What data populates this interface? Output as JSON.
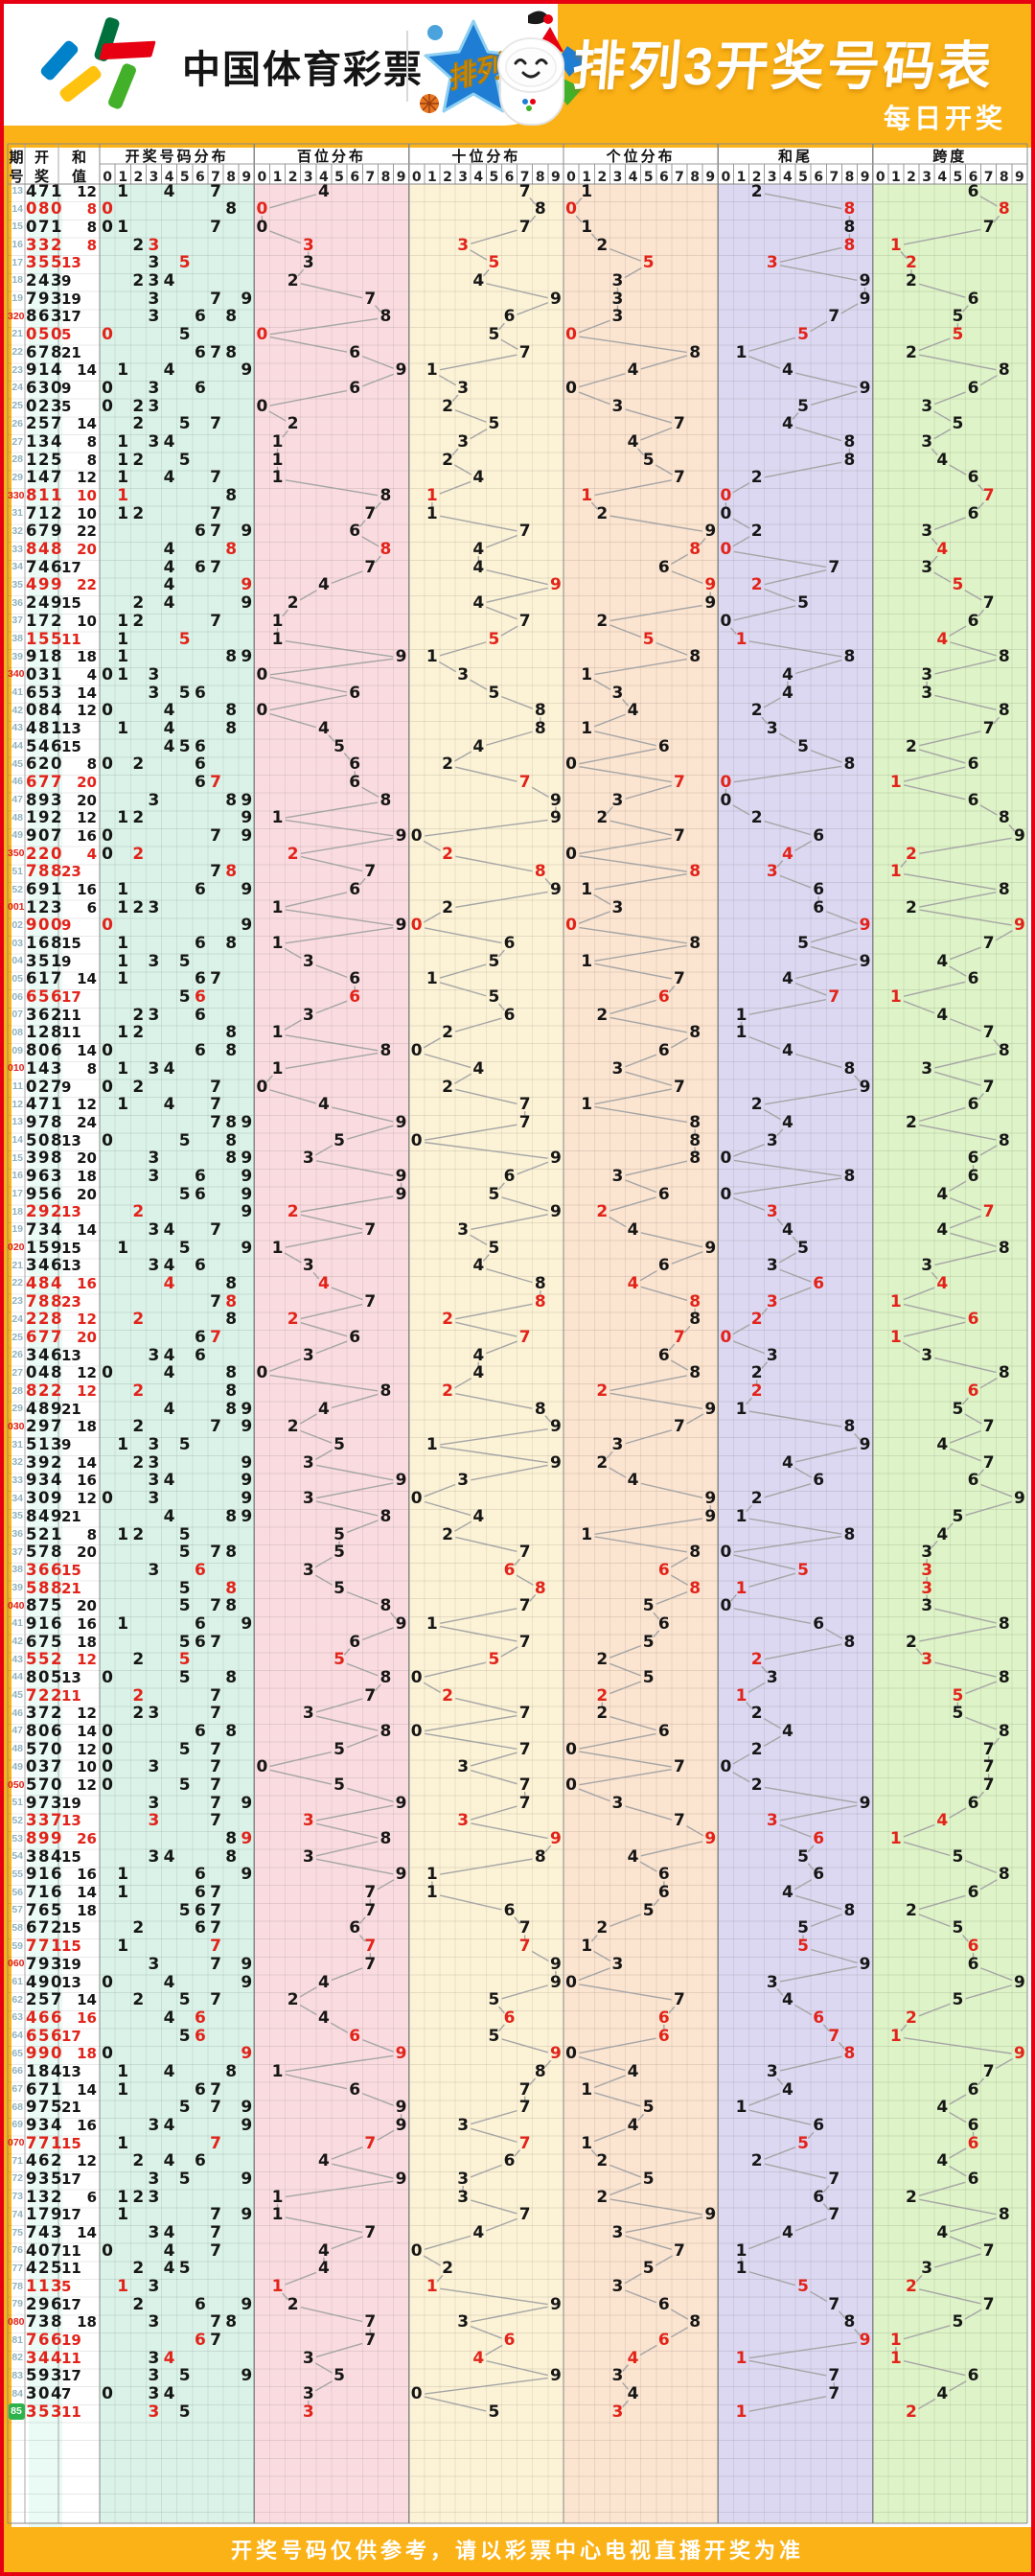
{
  "banner": {
    "brand": "中国体育彩票",
    "badge": "排列3",
    "title": "排列3开奖号码表",
    "subtitle": "每日开奖"
  },
  "table": {
    "left_headers": [
      "期号",
      "开奖",
      "和值"
    ],
    "digit_headers": [
      "0",
      "1",
      "2",
      "3",
      "4",
      "5",
      "6",
      "7",
      "8",
      "9"
    ],
    "bands": [
      {
        "title": "开奖号码分布",
        "color": "#daf2e8"
      },
      {
        "title": "百位分布",
        "color": "#fadce0"
      },
      {
        "title": "十位分布",
        "color": "#fcf2d6"
      },
      {
        "title": "个位分布",
        "color": "#fbe4d0"
      },
      {
        "title": "和尾",
        "color": "#dcd8f1"
      },
      {
        "title": "跨度",
        "color": "#def3c7"
      }
    ]
  },
  "footer": {
    "note": "开奖号码仅供参考，请以彩票中心电视直播开奖为准"
  },
  "colors": {
    "accent_orange": "#fbb216",
    "border_red": "#e60012",
    "value_black": "#161616",
    "value_red": "#e2231a",
    "issue_teal": "#90b2be",
    "latest_green": "#2db34a",
    "line_gray": "#a5a5a5",
    "result_col_bg": "#eafaf4"
  },
  "chart_data": {
    "type": "table",
    "columns": [
      "issue",
      "result",
      "sum"
    ],
    "rows": [
      [
        "13",
        "471",
        12
      ],
      [
        "14",
        "080",
        8
      ],
      [
        "15",
        "071",
        8
      ],
      [
        "16",
        "332",
        8
      ],
      [
        "17",
        "355",
        13
      ],
      [
        "18",
        "243",
        9
      ],
      [
        "19",
        "793",
        19
      ],
      [
        "320",
        "863",
        17
      ],
      [
        "21",
        "050",
        5
      ],
      [
        "22",
        "678",
        21
      ],
      [
        "23",
        "914",
        14
      ],
      [
        "24",
        "630",
        9
      ],
      [
        "25",
        "023",
        5
      ],
      [
        "26",
        "257",
        14
      ],
      [
        "27",
        "134",
        8
      ],
      [
        "28",
        "125",
        8
      ],
      [
        "29",
        "147",
        12
      ],
      [
        "330",
        "811",
        10
      ],
      [
        "31",
        "712",
        10
      ],
      [
        "32",
        "679",
        22
      ],
      [
        "33",
        "848",
        20
      ],
      [
        "34",
        "746",
        17
      ],
      [
        "35",
        "499",
        22
      ],
      [
        "36",
        "249",
        15
      ],
      [
        "37",
        "172",
        10
      ],
      [
        "38",
        "155",
        11
      ],
      [
        "39",
        "918",
        18
      ],
      [
        "340",
        "031",
        4
      ],
      [
        "41",
        "653",
        14
      ],
      [
        "42",
        "084",
        12
      ],
      [
        "43",
        "481",
        13
      ],
      [
        "44",
        "546",
        15
      ],
      [
        "45",
        "620",
        8
      ],
      [
        "46",
        "677",
        20
      ],
      [
        "47",
        "893",
        20
      ],
      [
        "48",
        "192",
        12
      ],
      [
        "49",
        "907",
        16
      ],
      [
        "350",
        "220",
        4
      ],
      [
        "51",
        "788",
        23
      ],
      [
        "52",
        "691",
        16
      ],
      [
        "001",
        "123",
        6
      ],
      [
        "02",
        "900",
        9
      ],
      [
        "03",
        "168",
        15
      ],
      [
        "04",
        "351",
        9
      ],
      [
        "05",
        "617",
        14
      ],
      [
        "06",
        "656",
        17
      ],
      [
        "07",
        "362",
        11
      ],
      [
        "08",
        "128",
        11
      ],
      [
        "09",
        "806",
        14
      ],
      [
        "010",
        "143",
        8
      ],
      [
        "11",
        "027",
        9
      ],
      [
        "12",
        "471",
        12
      ],
      [
        "13",
        "978",
        24
      ],
      [
        "14",
        "508",
        13
      ],
      [
        "15",
        "398",
        20
      ],
      [
        "16",
        "963",
        18
      ],
      [
        "17",
        "956",
        20
      ],
      [
        "18",
        "292",
        13
      ],
      [
        "19",
        "734",
        14
      ],
      [
        "020",
        "159",
        15
      ],
      [
        "21",
        "346",
        13
      ],
      [
        "22",
        "484",
        16
      ],
      [
        "23",
        "788",
        23
      ],
      [
        "24",
        "228",
        12
      ],
      [
        "25",
        "677",
        20
      ],
      [
        "26",
        "346",
        13
      ],
      [
        "27",
        "048",
        12
      ],
      [
        "28",
        "822",
        12
      ],
      [
        "29",
        "489",
        21
      ],
      [
        "030",
        "297",
        18
      ],
      [
        "31",
        "513",
        9
      ],
      [
        "32",
        "392",
        14
      ],
      [
        "33",
        "934",
        16
      ],
      [
        "34",
        "309",
        12
      ],
      [
        "35",
        "849",
        21
      ],
      [
        "36",
        "521",
        8
      ],
      [
        "37",
        "578",
        20
      ],
      [
        "38",
        "366",
        15
      ],
      [
        "39",
        "588",
        21
      ],
      [
        "040",
        "875",
        20
      ],
      [
        "41",
        "916",
        16
      ],
      [
        "42",
        "675",
        18
      ],
      [
        "43",
        "552",
        12
      ],
      [
        "44",
        "805",
        13
      ],
      [
        "45",
        "722",
        11
      ],
      [
        "46",
        "372",
        12
      ],
      [
        "47",
        "806",
        14
      ],
      [
        "48",
        "570",
        12
      ],
      [
        "49",
        "037",
        10
      ],
      [
        "050",
        "570",
        12
      ],
      [
        "51",
        "973",
        19
      ],
      [
        "52",
        "337",
        13
      ],
      [
        "53",
        "899",
        26
      ],
      [
        "54",
        "384",
        15
      ],
      [
        "55",
        "916",
        16
      ],
      [
        "56",
        "716",
        14
      ],
      [
        "57",
        "765",
        18
      ],
      [
        "58",
        "672",
        15
      ],
      [
        "59",
        "771",
        15
      ],
      [
        "060",
        "793",
        19
      ],
      [
        "61",
        "490",
        13
      ],
      [
        "62",
        "257",
        14
      ],
      [
        "63",
        "466",
        16
      ],
      [
        "64",
        "656",
        17
      ],
      [
        "65",
        "990",
        18
      ],
      [
        "66",
        "184",
        13
      ],
      [
        "67",
        "671",
        14
      ],
      [
        "68",
        "975",
        21
      ],
      [
        "69",
        "934",
        16
      ],
      [
        "070",
        "771",
        15
      ],
      [
        "71",
        "462",
        12
      ],
      [
        "72",
        "935",
        17
      ],
      [
        "73",
        "132",
        6
      ],
      [
        "74",
        "179",
        17
      ],
      [
        "75",
        "743",
        14
      ],
      [
        "76",
        "407",
        11
      ],
      [
        "77",
        "425",
        11
      ],
      [
        "78",
        "113",
        5
      ],
      [
        "79",
        "296",
        17
      ],
      [
        "080",
        "738",
        18
      ],
      [
        "81",
        "766",
        19
      ],
      [
        "82",
        "344",
        11
      ],
      [
        "83",
        "593",
        17
      ],
      [
        "84",
        "304",
        7
      ],
      [
        "85",
        "353",
        11
      ]
    ]
  }
}
